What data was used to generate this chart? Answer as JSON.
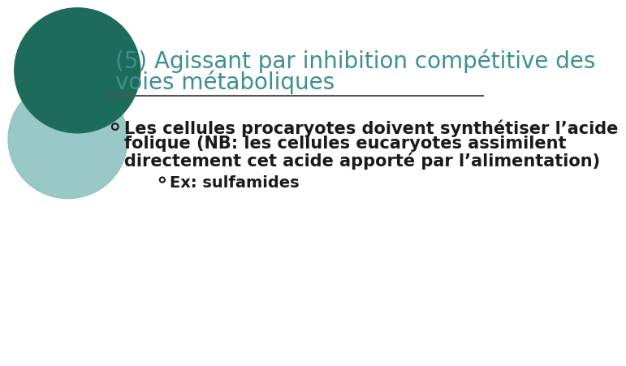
{
  "title_line1": "(5) Agissant par inhibition compétitive des",
  "title_line2": "voies métaboliques",
  "title_color": "#3d8f8f",
  "separator_color": "#555555",
  "bullet1_text_line1": "Les cellules procaryotes doivent synthétiser l’acide",
  "bullet1_text_line2": "folique (NB: les cellules eucaryotes assimilent",
  "bullet1_text_line3": "directement cet acide apporté par l’alimentation)",
  "bullet2_text": "Ex: sulfamides",
  "text_color": "#1a1a1a",
  "background_color": "#ffffff",
  "circle_color1": "#1d6b5a",
  "circle_color2": "#8ec4c0",
  "title_fontsize": 20,
  "body_fontsize": 15,
  "sub_fontsize": 14
}
